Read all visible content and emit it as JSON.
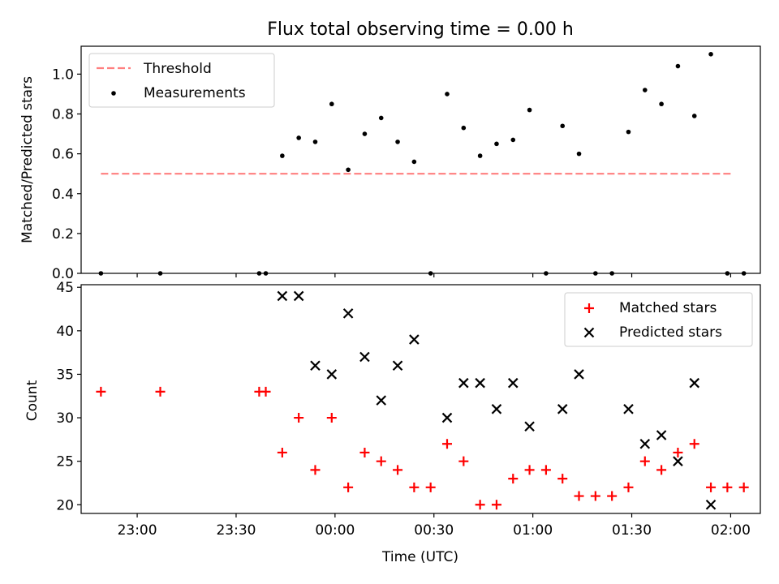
{
  "chart_data": [
    {
      "type": "scatter",
      "title": "Flux total observing time = 0.00 h",
      "xlabel": "",
      "ylabel": "Matched/Predicted stars",
      "xlim": [
        "22:43",
        "02:09"
      ],
      "ylim": [
        0,
        1.14
      ],
      "yticks": [
        0.0,
        0.2,
        0.4,
        0.6,
        0.8,
        1.0
      ],
      "ytick_labels": [
        "0.0",
        "0.2",
        "0.4",
        "0.6",
        "0.8",
        "1.0"
      ],
      "grid": false,
      "legend_position": "top-left",
      "threshold": {
        "name": "Threshold",
        "value": 0.5,
        "x_start": "22:49",
        "x_end": "02:00",
        "color": "#ff7f7f",
        "style": "dashed"
      },
      "series": [
        {
          "name": "Measurements",
          "color": "#000000",
          "marker": "dot",
          "points": [
            [
              "22:49",
              0.0
            ],
            [
              "23:07",
              0.0
            ],
            [
              "23:37",
              0.0
            ],
            [
              "23:39",
              0.0
            ],
            [
              "23:44",
              0.59
            ],
            [
              "23:49",
              0.68
            ],
            [
              "23:54",
              0.66
            ],
            [
              "23:59",
              0.85
            ],
            [
              "00:04",
              0.52
            ],
            [
              "00:09",
              0.7
            ],
            [
              "00:14",
              0.78
            ],
            [
              "00:19",
              0.66
            ],
            [
              "00:24",
              0.56
            ],
            [
              "00:29",
              0.0
            ],
            [
              "00:34",
              0.9
            ],
            [
              "00:39",
              0.73
            ],
            [
              "00:44",
              0.59
            ],
            [
              "00:49",
              0.65
            ],
            [
              "00:54",
              0.67
            ],
            [
              "00:59",
              0.82
            ],
            [
              "01:04",
              0.0
            ],
            [
              "01:09",
              0.74
            ],
            [
              "01:14",
              0.6
            ],
            [
              "01:19",
              0.0
            ],
            [
              "01:24",
              0.0
            ],
            [
              "01:29",
              0.71
            ],
            [
              "01:34",
              0.92
            ],
            [
              "01:39",
              0.85
            ],
            [
              "01:44",
              1.04
            ],
            [
              "01:49",
              0.79
            ],
            [
              "01:54",
              1.1
            ],
            [
              "01:59",
              0.0
            ],
            [
              "02:04",
              0.0
            ]
          ]
        }
      ]
    },
    {
      "type": "scatter",
      "title": "",
      "xlabel": "Time (UTC)",
      "ylabel": "Count",
      "xlim": [
        "22:43",
        "02:09"
      ],
      "ylim": [
        19,
        45.3
      ],
      "yticks": [
        20,
        25,
        30,
        35,
        40,
        45
      ],
      "ytick_labels": [
        "20",
        "25",
        "30",
        "35",
        "40",
        "45"
      ],
      "xticks": [
        "23:00",
        "23:30",
        "00:00",
        "00:30",
        "01:00",
        "01:30",
        "02:00"
      ],
      "xtick_labels": [
        "23:00",
        "23:30",
        "00:00",
        "00:30",
        "01:00",
        "01:30",
        "02:00"
      ],
      "grid": false,
      "legend_position": "top-right",
      "series": [
        {
          "name": "Matched stars",
          "color": "#ff0000",
          "marker": "plus",
          "points": [
            [
              "22:49",
              33
            ],
            [
              "23:07",
              33
            ],
            [
              "23:37",
              33
            ],
            [
              "23:39",
              33
            ],
            [
              "23:44",
              26
            ],
            [
              "23:49",
              30
            ],
            [
              "23:54",
              24
            ],
            [
              "23:59",
              30
            ],
            [
              "00:04",
              22
            ],
            [
              "00:09",
              26
            ],
            [
              "00:14",
              25
            ],
            [
              "00:19",
              24
            ],
            [
              "00:24",
              22
            ],
            [
              "00:29",
              22
            ],
            [
              "00:34",
              27
            ],
            [
              "00:39",
              25
            ],
            [
              "00:44",
              20
            ],
            [
              "00:49",
              20
            ],
            [
              "00:54",
              23
            ],
            [
              "00:59",
              24
            ],
            [
              "01:04",
              24
            ],
            [
              "01:09",
              23
            ],
            [
              "01:14",
              21
            ],
            [
              "01:19",
              21
            ],
            [
              "01:24",
              21
            ],
            [
              "01:29",
              22
            ],
            [
              "01:34",
              25
            ],
            [
              "01:39",
              24
            ],
            [
              "01:44",
              26
            ],
            [
              "01:49",
              27
            ],
            [
              "01:54",
              22
            ],
            [
              "01:59",
              22
            ],
            [
              "02:04",
              22
            ]
          ]
        },
        {
          "name": "Predicted stars",
          "color": "#000000",
          "marker": "x",
          "points": [
            [
              "23:44",
              44
            ],
            [
              "23:49",
              44
            ],
            [
              "23:54",
              36
            ],
            [
              "23:59",
              35
            ],
            [
              "00:04",
              42
            ],
            [
              "00:09",
              37
            ],
            [
              "00:14",
              32
            ],
            [
              "00:19",
              36
            ],
            [
              "00:24",
              39
            ],
            [
              "00:34",
              30
            ],
            [
              "00:39",
              34
            ],
            [
              "00:44",
              34
            ],
            [
              "00:49",
              31
            ],
            [
              "00:54",
              34
            ],
            [
              "00:59",
              29
            ],
            [
              "01:09",
              31
            ],
            [
              "01:14",
              35
            ],
            [
              "01:29",
              31
            ],
            [
              "01:34",
              27
            ],
            [
              "01:39",
              28
            ],
            [
              "01:44",
              25
            ],
            [
              "01:49",
              34
            ],
            [
              "01:54",
              20
            ]
          ]
        }
      ]
    }
  ]
}
